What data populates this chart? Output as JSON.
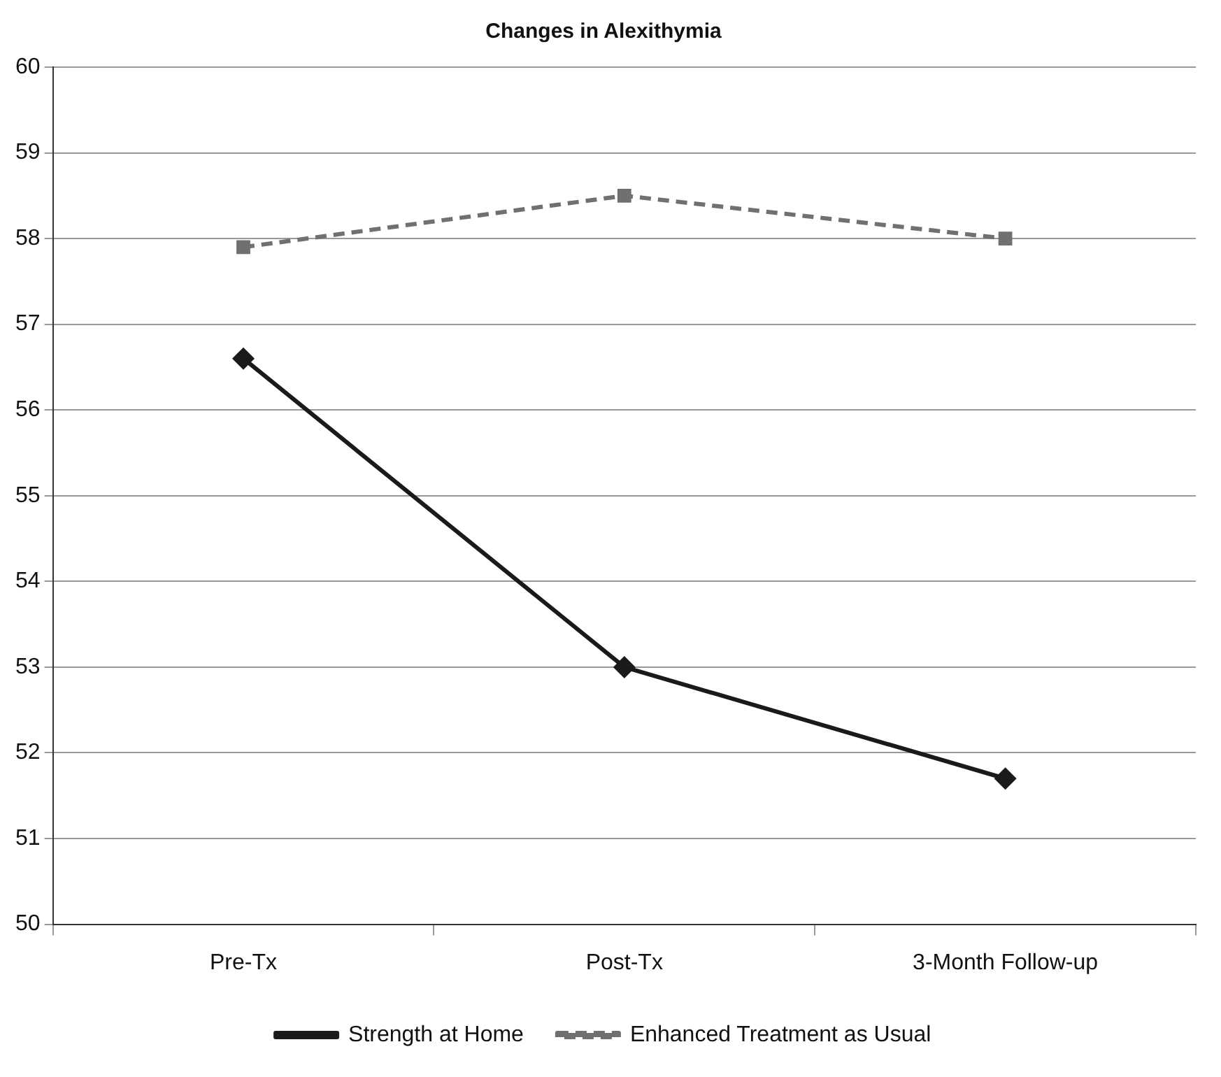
{
  "chart_data": {
    "type": "line",
    "title": "Changes in Alexithymia",
    "categories": [
      "Pre-Tx",
      "Post-Tx",
      "3-Month Follow-up"
    ],
    "series": [
      {
        "name": "Strength at Home",
        "color": "#1a1a1a",
        "values": [
          56.6,
          53.0,
          51.7
        ],
        "marker": "diamond",
        "line_style": "solid"
      },
      {
        "name": "Enhanced Treatment as Usual",
        "color": "#707070",
        "values": [
          57.9,
          58.5,
          58.0
        ],
        "marker": "square",
        "line_style": "dashed"
      }
    ],
    "ylim": [
      50,
      60
    ],
    "yticks": [
      50,
      51,
      52,
      53,
      54,
      55,
      56,
      57,
      58,
      59,
      60
    ],
    "grid": "y",
    "legend": "bottom"
  }
}
